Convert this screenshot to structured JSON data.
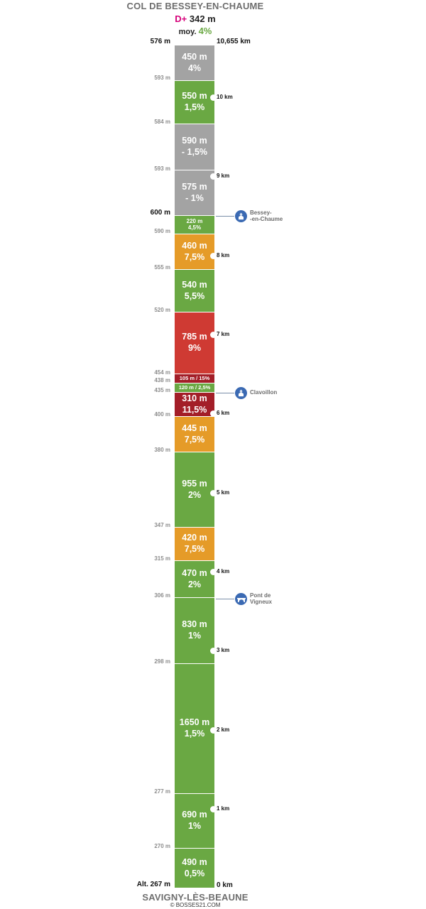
{
  "header": {
    "title": "COL DE BESSEY-EN-CHAUME",
    "dplus_label": "D+",
    "dplus_value": "342 m",
    "avg_label": "moy.",
    "avg_value": "4%"
  },
  "footer": {
    "title": "SAVIGNY-LÈS-BEAUNE",
    "copyright": "© BOSSES21.COM"
  },
  "colors": {
    "green": "#6aa843",
    "gray": "#a3a3a3",
    "orange": "#e59b28",
    "red": "#cf3a33",
    "dark_red": "#a31e28",
    "poi_blue": "#3b6ab3",
    "dplus_magenta": "#d6007a"
  },
  "segments": [
    {
      "l1": "450 m",
      "l2": "4%",
      "color": "gray",
      "size": "big"
    },
    {
      "l1": "550 m",
      "l2": "1,5%",
      "color": "green",
      "size": "big"
    },
    {
      "l1": "590 m",
      "l2": "- 1,5%",
      "color": "gray",
      "size": "big"
    },
    {
      "l1": "575 m",
      "l2": "- 1%",
      "color": "gray",
      "size": "big"
    },
    {
      "l1": "220 m",
      "l2": "4,5%",
      "color": "green",
      "size": "small"
    },
    {
      "l1": "460 m",
      "l2": "7,5%",
      "color": "orange",
      "size": "big"
    },
    {
      "l1": "540 m",
      "l2": "5,5%",
      "color": "green",
      "size": "big"
    },
    {
      "l1": "785 m",
      "l2": "9%",
      "color": "red",
      "size": "big"
    },
    {
      "l1": "105 m / 15%",
      "l2": "",
      "color": "dark_red",
      "size": "tiny"
    },
    {
      "l1": "120 m / 2,5%",
      "l2": "",
      "color": "green",
      "size": "tiny"
    },
    {
      "l1": "310 m",
      "l2": "11,5%",
      "color": "dark_red",
      "size": "big"
    },
    {
      "l1": "445 m",
      "l2": "7,5%",
      "color": "orange",
      "size": "big"
    },
    {
      "l1": "955 m",
      "l2": "2%",
      "color": "green",
      "size": "big"
    },
    {
      "l1": "420 m",
      "l2": "7,5%",
      "color": "orange",
      "size": "big"
    },
    {
      "l1": "470 m",
      "l2": "2%",
      "color": "green",
      "size": "big"
    },
    {
      "l1": "830 m",
      "l2": "1%",
      "color": "green",
      "size": "big"
    },
    {
      "l1": "1650 m",
      "l2": "1,5%",
      "color": "green",
      "size": "big"
    },
    {
      "l1": "690 m",
      "l2": "1%",
      "color": "green",
      "size": "big"
    },
    {
      "l1": "490 m",
      "l2": "0,5%",
      "color": "green",
      "size": "big"
    }
  ],
  "altitudes": [
    "576 m",
    "593 m",
    "584 m",
    "593 m",
    "600 m",
    "590 m",
    "555 m",
    "520 m",
    "454 m",
    "438 m",
    "435 m",
    "400 m",
    "380 m",
    "347 m",
    "315 m",
    "306 m",
    "298 m",
    "277 m",
    "270 m",
    "Alt. 267 m"
  ],
  "km_marks": [
    "10,655 km",
    "10 km",
    "9 km",
    "8 km",
    "7 km",
    "6 km",
    "5 km",
    "4 km",
    "3 km",
    "2 km",
    "1 km",
    "0 km"
  ],
  "pois": [
    {
      "label": "Bessey-\n-en-Chaume",
      "icon": "church-icon"
    },
    {
      "label": "Clavoillon",
      "icon": "church-icon"
    },
    {
      "label": "Pont de\nVigneux",
      "icon": "bridge-icon"
    }
  ]
}
